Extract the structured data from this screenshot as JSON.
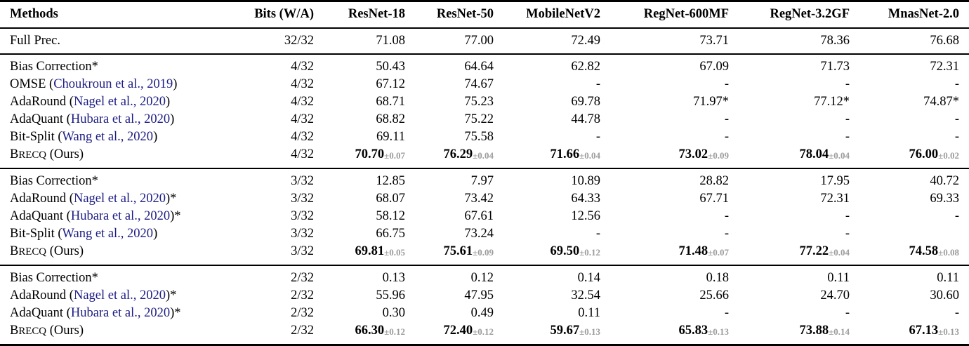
{
  "colors": {
    "citation_link": "#1c1c84",
    "pm_gray": "#9c9c9c",
    "rule_black": "#000000"
  },
  "table": {
    "columns": [
      {
        "label": "Methods",
        "align": "left"
      },
      {
        "label": "Bits (W/A)"
      },
      {
        "label": "ResNet-18"
      },
      {
        "label": "ResNet-50"
      },
      {
        "label": "MobileNetV2"
      },
      {
        "label": "RegNet-600MF"
      },
      {
        "label": "RegNet-3.2GF"
      },
      {
        "label": "MnasNet-2.0"
      }
    ],
    "groups": [
      {
        "rows": [
          {
            "method": [
              {
                "t": "Full Prec."
              }
            ],
            "bits": "32/32",
            "values": [
              "71.08",
              "77.00",
              "72.49",
              "73.71",
              "78.36",
              "76.68"
            ]
          }
        ]
      },
      {
        "rows": [
          {
            "method": [
              {
                "t": "Bias Correction*"
              }
            ],
            "bits": "4/32",
            "values": [
              "50.43",
              "64.64",
              "62.82",
              "67.09",
              "71.73",
              "72.31"
            ]
          },
          {
            "method": [
              {
                "t": "OMSE ("
              },
              {
                "t": "Choukroun et al., 2019",
                "s": "cite"
              },
              {
                "t": ")"
              }
            ],
            "bits": "4/32",
            "values": [
              "67.12",
              "74.67",
              "-",
              "-",
              "-",
              "-"
            ]
          },
          {
            "method": [
              {
                "t": "AdaRound ("
              },
              {
                "t": "Nagel et al., 2020",
                "s": "cite"
              },
              {
                "t": ")"
              }
            ],
            "bits": "4/32",
            "values": [
              "68.71",
              "75.23",
              "69.78",
              "71.97*",
              "77.12*",
              "74.87*"
            ]
          },
          {
            "method": [
              {
                "t": "AdaQuant ("
              },
              {
                "t": "Hubara et al., 2020",
                "s": "cite"
              },
              {
                "t": ")"
              }
            ],
            "bits": "4/32",
            "values": [
              "68.82",
              "75.22",
              "44.78",
              "-",
              "-",
              "-"
            ]
          },
          {
            "method": [
              {
                "t": "Bit-Split ("
              },
              {
                "t": "Wang et al., 2020",
                "s": "cite"
              },
              {
                "t": ")"
              }
            ],
            "bits": "4/32",
            "values": [
              "69.11",
              "75.58",
              "-",
              "-",
              "-",
              "-"
            ]
          },
          {
            "method": [
              {
                "t": "B"
              },
              {
                "t": "RECQ",
                "s": "sc"
              },
              {
                "t": " (Ours)"
              }
            ],
            "bits": "4/32",
            "bold": true,
            "values": [
              {
                "v": "70.70",
                "pm": "±0.07"
              },
              {
                "v": "76.29",
                "pm": "±0.04"
              },
              {
                "v": "71.66",
                "pm": "±0.04"
              },
              {
                "v": "73.02",
                "pm": "±0.09"
              },
              {
                "v": "78.04",
                "pm": "±0.04"
              },
              {
                "v": "76.00",
                "pm": "±0.02"
              }
            ]
          }
        ]
      },
      {
        "rows": [
          {
            "method": [
              {
                "t": "Bias Correction*"
              }
            ],
            "bits": "3/32",
            "values": [
              "12.85",
              "7.97",
              "10.89",
              "28.82",
              "17.95",
              "40.72"
            ]
          },
          {
            "method": [
              {
                "t": "AdaRound ("
              },
              {
                "t": "Nagel et al., 2020",
                "s": "cite"
              },
              {
                "t": ")*"
              }
            ],
            "bits": "3/32",
            "values": [
              "68.07",
              "73.42",
              "64.33",
              "67.71",
              "72.31",
              "69.33"
            ]
          },
          {
            "method": [
              {
                "t": "AdaQuant ("
              },
              {
                "t": "Hubara et al., 2020",
                "s": "cite"
              },
              {
                "t": ")*"
              }
            ],
            "bits": "3/32",
            "values": [
              "58.12",
              "67.61",
              "12.56",
              "-",
              "-",
              "-"
            ]
          },
          {
            "method": [
              {
                "t": "Bit-Split ("
              },
              {
                "t": "Wang et al., 2020",
                "s": "cite"
              },
              {
                "t": ")"
              }
            ],
            "bits": "3/32",
            "values": [
              "66.75",
              "73.24",
              "-",
              "-",
              "-",
              ""
            ]
          },
          {
            "method": [
              {
                "t": "B"
              },
              {
                "t": "RECQ",
                "s": "sc"
              },
              {
                "t": " (Ours)"
              }
            ],
            "bits": "3/32",
            "bold": true,
            "values": [
              {
                "v": "69.81",
                "pm": "±0.05"
              },
              {
                "v": "75.61",
                "pm": "±0.09"
              },
              {
                "v": "69.50",
                "pm": "±0.12"
              },
              {
                "v": "71.48",
                "pm": "±0.07"
              },
              {
                "v": "77.22",
                "pm": "±0.04"
              },
              {
                "v": "74.58",
                "pm": "±0.08"
              }
            ]
          }
        ]
      },
      {
        "rows": [
          {
            "method": [
              {
                "t": "Bias Correction*"
              }
            ],
            "bits": "2/32",
            "values": [
              "0.13",
              "0.12",
              "0.14",
              "0.18",
              "0.11",
              "0.11"
            ]
          },
          {
            "method": [
              {
                "t": "AdaRound ("
              },
              {
                "t": "Nagel et al., 2020",
                "s": "cite"
              },
              {
                "t": ")*"
              }
            ],
            "bits": "2/32",
            "values": [
              "55.96",
              "47.95",
              "32.54",
              "25.66",
              "24.70",
              "30.60"
            ]
          },
          {
            "method": [
              {
                "t": "AdaQuant ("
              },
              {
                "t": "Hubara et al., 2020",
                "s": "cite"
              },
              {
                "t": ")*"
              }
            ],
            "bits": "2/32",
            "values": [
              "0.30",
              "0.49",
              "0.11",
              "-",
              "-",
              "-"
            ]
          },
          {
            "method": [
              {
                "t": "B"
              },
              {
                "t": "RECQ",
                "s": "sc"
              },
              {
                "t": " (Ours)"
              }
            ],
            "bits": "2/32",
            "bold": true,
            "values": [
              {
                "v": "66.30",
                "pm": "±0.12"
              },
              {
                "v": "72.40",
                "pm": "±0.12"
              },
              {
                "v": "59.67",
                "pm": "±0.13"
              },
              {
                "v": "65.83",
                "pm": "±0.13"
              },
              {
                "v": "73.88",
                "pm": "±0.14"
              },
              {
                "v": "67.13",
                "pm": "±0.13"
              }
            ]
          }
        ]
      }
    ]
  }
}
